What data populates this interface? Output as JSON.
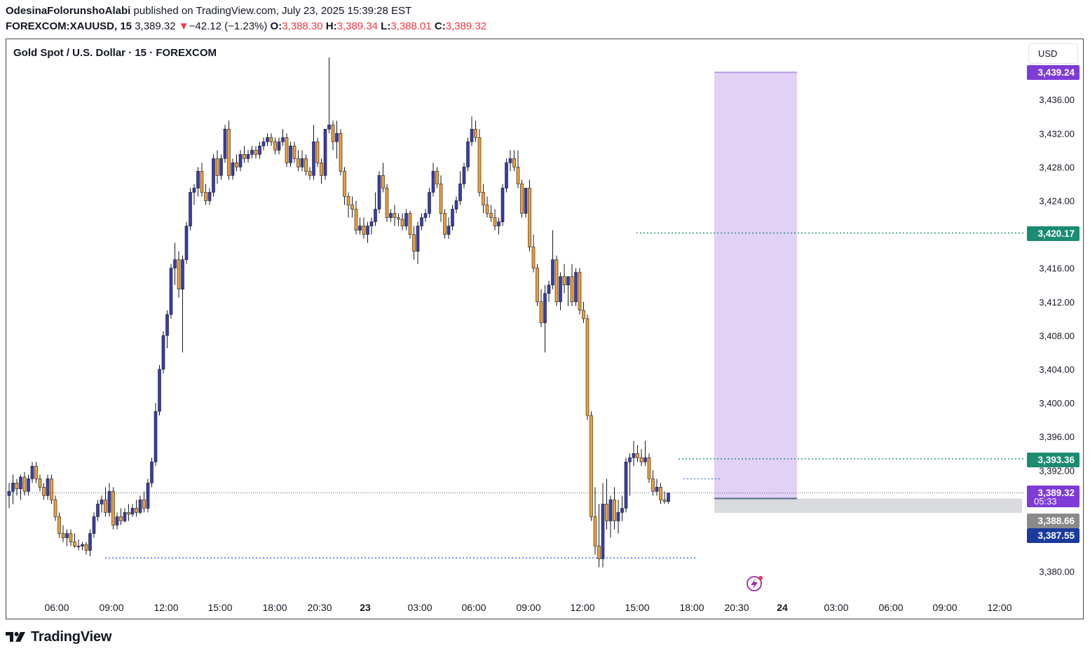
{
  "header": {
    "author": "OdesinaFolorunshoAlabi",
    "published_text": "published on TradingView.com, July 23, 2025 15:39:28 EST",
    "symbol": "FOREXCOM:XAUUSD, 15",
    "last_price": "3,389.32",
    "change_arrow": "▼",
    "change": "−42.12 (−1.23%)",
    "o_label": "O:",
    "o_value": "3,388.30",
    "h_label": "H:",
    "h_value": "3,389.34",
    "l_label": "L:",
    "l_value": "3,388.01",
    "c_label": "C:",
    "c_value": "3,389.32"
  },
  "chart_title": "Gold Spot / U.S. Dollar · 15 · FOREXCOM",
  "currency_button": "USD",
  "footer": {
    "brand": "TradingView",
    "logo_icon": "tradingview-logo-icon"
  },
  "replay_icon": "lightning-icon",
  "colors": {
    "up": "#3a3dac",
    "down": "#f0a030",
    "wick": "#131722",
    "target_zone": "#e1d1f5",
    "purple_label": "#7e3bd8",
    "green_label": "#1b8b72",
    "dark_blue": "#1a3a9c",
    "gray_label": "#8a8a8a",
    "stop_zone": "#d9dbde"
  },
  "chart_data": {
    "type": "candlestick",
    "title": "Gold Spot / U.S. Dollar · 15 · FOREXCOM",
    "y_axis_ticks": [
      "3,436.00",
      "3,432.00",
      "3,428.00",
      "3,424.00",
      "3,416.00",
      "3,412.00",
      "3,408.00",
      "3,404.00",
      "3,400.00",
      "3,396.00",
      "3,392.00",
      "3,380.00"
    ],
    "ylim": [
      3377.5,
      3442.0
    ],
    "x_axis_ticks": [
      "06:00",
      "09:00",
      "12:00",
      "15:00",
      "18:00",
      "20:30",
      "23",
      "03:00",
      "06:00",
      "09:00",
      "12:00",
      "15:00",
      "18:00",
      "20:30",
      "24",
      "03:00",
      "06:00",
      "09:00",
      "12:00"
    ],
    "price_labels": [
      {
        "text": "3,439.24",
        "color": "purple"
      },
      {
        "text": "3,420.17",
        "color": "green"
      },
      {
        "text": "3,393.36",
        "color": "green"
      },
      {
        "text": "3,389.32",
        "sub": "05:33",
        "color": "purple"
      },
      {
        "text": "3,388.66",
        "color": "gray"
      },
      {
        "text": "3,387.55",
        "color": "dark_blue"
      }
    ],
    "levels": [
      {
        "price": 3420.17,
        "style": "dotted-green"
      },
      {
        "price": 3393.36,
        "style": "dotted-green"
      },
      {
        "price": 3381.6,
        "style": "dotted-blue"
      },
      {
        "price": 3389.32,
        "style": "dotted-last"
      }
    ],
    "position": {
      "entry": 3388.66,
      "target": 3439.24,
      "stop": 3387.55
    },
    "candles": [
      [
        3389.0,
        3390.5,
        3387.5,
        3389.5
      ],
      [
        3389.5,
        3391.5,
        3388.0,
        3390.5
      ],
      [
        3390.5,
        3391.0,
        3389.0,
        3389.8
      ],
      [
        3389.8,
        3391.5,
        3388.5,
        3391.2
      ],
      [
        3391.2,
        3391.8,
        3389.0,
        3389.5
      ],
      [
        3389.5,
        3391.5,
        3389.0,
        3391.0
      ],
      [
        3391.0,
        3393.0,
        3390.5,
        3392.5
      ],
      [
        3392.5,
        3393.0,
        3390.5,
        3391.0
      ],
      [
        3391.0,
        3391.5,
        3389.5,
        3390.0
      ],
      [
        3390.0,
        3390.5,
        3388.5,
        3389.0
      ],
      [
        3389.0,
        3391.5,
        3388.5,
        3391.0
      ],
      [
        3391.0,
        3391.5,
        3388.0,
        3388.5
      ],
      [
        3388.5,
        3389.0,
        3386.0,
        3386.5
      ],
      [
        3386.5,
        3387.0,
        3384.0,
        3384.5
      ],
      [
        3384.5,
        3385.5,
        3383.5,
        3384.0
      ],
      [
        3384.0,
        3385.0,
        3383.0,
        3384.5
      ],
      [
        3384.5,
        3385.0,
        3383.0,
        3383.5
      ],
      [
        3383.5,
        3384.5,
        3382.8,
        3383.0
      ],
      [
        3383.0,
        3383.8,
        3382.5,
        3383.0
      ],
      [
        3383.0,
        3383.5,
        3382.5,
        3383.2
      ],
      [
        3383.2,
        3383.5,
        3382.0,
        3382.5
      ],
      [
        3382.5,
        3385.0,
        3381.8,
        3384.5
      ],
      [
        3384.5,
        3387.0,
        3384.0,
        3386.5
      ],
      [
        3386.5,
        3388.5,
        3386.0,
        3388.0
      ],
      [
        3388.0,
        3389.0,
        3387.0,
        3388.5
      ],
      [
        3388.5,
        3390.0,
        3386.5,
        3387.0
      ],
      [
        3387.0,
        3390.5,
        3386.5,
        3389.5
      ],
      [
        3389.5,
        3390.0,
        3385.0,
        3385.5
      ],
      [
        3385.5,
        3387.0,
        3385.0,
        3386.5
      ],
      [
        3386.5,
        3387.5,
        3385.5,
        3386.0
      ],
      [
        3386.0,
        3387.5,
        3385.8,
        3387.0
      ],
      [
        3387.0,
        3388.0,
        3386.0,
        3386.8
      ],
      [
        3386.8,
        3388.0,
        3386.5,
        3387.5
      ],
      [
        3387.5,
        3388.5,
        3386.5,
        3387.0
      ],
      [
        3387.0,
        3389.0,
        3386.8,
        3388.5
      ],
      [
        3388.5,
        3389.5,
        3387.0,
        3387.5
      ],
      [
        3387.5,
        3391.0,
        3387.0,
        3390.5
      ],
      [
        3390.5,
        3393.5,
        3390.0,
        3393.0
      ],
      [
        3393.0,
        3400.0,
        3392.5,
        3399.0
      ],
      [
        3399.0,
        3404.5,
        3398.5,
        3404.0
      ],
      [
        3404.0,
        3408.5,
        3403.5,
        3408.0
      ],
      [
        3408.0,
        3411.0,
        3406.5,
        3410.5
      ],
      [
        3410.5,
        3416.5,
        3410.0,
        3416.0
      ],
      [
        3416.0,
        3419.0,
        3414.0,
        3417.0
      ],
      [
        3417.0,
        3418.0,
        3412.5,
        3413.5
      ],
      [
        3413.5,
        3417.5,
        3406.0,
        3417.0
      ],
      [
        3417.0,
        3421.5,
        3416.5,
        3421.0
      ],
      [
        3421.0,
        3425.5,
        3420.5,
        3425.0
      ],
      [
        3425.0,
        3426.0,
        3423.5,
        3425.5
      ],
      [
        3425.5,
        3428.0,
        3424.5,
        3427.5
      ],
      [
        3427.5,
        3428.5,
        3424.5,
        3425.0
      ],
      [
        3425.0,
        3426.0,
        3423.5,
        3424.0
      ],
      [
        3424.0,
        3425.5,
        3423.5,
        3425.0
      ],
      [
        3425.0,
        3429.5,
        3424.5,
        3429.0
      ],
      [
        3429.0,
        3430.0,
        3426.0,
        3427.0
      ],
      [
        3427.0,
        3429.5,
        3426.5,
        3429.0
      ],
      [
        3429.0,
        3433.0,
        3428.5,
        3432.5
      ],
      [
        3432.5,
        3433.5,
        3426.5,
        3427.0
      ],
      [
        3427.0,
        3429.0,
        3426.5,
        3428.5
      ],
      [
        3428.5,
        3429.5,
        3427.5,
        3428.0
      ],
      [
        3428.0,
        3430.0,
        3427.5,
        3429.5
      ],
      [
        3429.5,
        3430.5,
        3428.5,
        3429.0
      ],
      [
        3429.0,
        3430.0,
        3428.5,
        3429.5
      ],
      [
        3429.5,
        3430.5,
        3429.0,
        3430.0
      ],
      [
        3430.0,
        3430.5,
        3429.0,
        3429.5
      ],
      [
        3429.5,
        3431.0,
        3429.0,
        3430.5
      ],
      [
        3430.5,
        3431.5,
        3430.0,
        3431.0
      ],
      [
        3431.0,
        3432.0,
        3430.5,
        3431.5
      ],
      [
        3431.5,
        3432.0,
        3430.5,
        3431.0
      ],
      [
        3431.0,
        3431.5,
        3429.5,
        3430.0
      ],
      [
        3430.0,
        3431.5,
        3429.5,
        3431.0
      ],
      [
        3431.0,
        3432.5,
        3430.5,
        3431.5
      ],
      [
        3431.5,
        3432.0,
        3428.0,
        3428.5
      ],
      [
        3428.5,
        3431.0,
        3428.0,
        3430.5
      ],
      [
        3430.5,
        3431.0,
        3428.5,
        3429.0
      ],
      [
        3429.0,
        3430.0,
        3427.5,
        3428.0
      ],
      [
        3428.0,
        3430.0,
        3427.5,
        3429.0
      ],
      [
        3429.0,
        3429.5,
        3427.0,
        3427.5
      ],
      [
        3427.5,
        3428.0,
        3426.5,
        3427.0
      ],
      [
        3427.0,
        3433.0,
        3426.5,
        3431.0
      ],
      [
        3431.0,
        3431.5,
        3428.0,
        3428.5
      ],
      [
        3428.5,
        3429.0,
        3426.0,
        3427.0
      ],
      [
        3427.0,
        3432.5,
        3426.5,
        3432.5
      ],
      [
        3432.5,
        3441.0,
        3432.0,
        3433.0
      ],
      [
        3433.0,
        3433.5,
        3430.0,
        3431.0
      ],
      [
        3431.0,
        3433.5,
        3429.0,
        3432.0
      ],
      [
        3432.0,
        3432.5,
        3427.0,
        3427.5
      ],
      [
        3427.5,
        3428.0,
        3423.5,
        3424.5
      ],
      [
        3424.5,
        3425.0,
        3422.0,
        3423.5
      ],
      [
        3423.5,
        3424.5,
        3422.0,
        3423.0
      ],
      [
        3423.0,
        3424.0,
        3420.0,
        3420.5
      ],
      [
        3420.5,
        3422.0,
        3420.0,
        3421.0
      ],
      [
        3421.0,
        3422.0,
        3419.5,
        3420.0
      ],
      [
        3420.0,
        3421.5,
        3419.0,
        3421.0
      ],
      [
        3421.0,
        3422.0,
        3420.0,
        3421.5
      ],
      [
        3421.5,
        3425.0,
        3421.0,
        3423.0
      ],
      [
        3423.0,
        3427.5,
        3422.5,
        3427.0
      ],
      [
        3427.0,
        3428.5,
        3425.0,
        3425.5
      ],
      [
        3425.5,
        3426.0,
        3421.5,
        3422.0
      ],
      [
        3422.0,
        3423.0,
        3421.5,
        3422.5
      ],
      [
        3422.5,
        3423.5,
        3421.0,
        3422.0
      ],
      [
        3422.0,
        3422.5,
        3421.0,
        3421.8
      ],
      [
        3421.8,
        3422.5,
        3420.5,
        3421.0
      ],
      [
        3421.0,
        3423.0,
        3420.5,
        3422.5
      ],
      [
        3422.5,
        3422.8,
        3419.5,
        3420.0
      ],
      [
        3420.0,
        3421.0,
        3417.0,
        3418.0
      ],
      [
        3418.0,
        3421.5,
        3416.5,
        3421.0
      ],
      [
        3421.0,
        3422.5,
        3420.5,
        3422.0
      ],
      [
        3422.0,
        3423.0,
        3421.5,
        3422.5
      ],
      [
        3422.5,
        3425.5,
        3422.0,
        3425.0
      ],
      [
        3425.0,
        3428.5,
        3424.5,
        3427.5
      ],
      [
        3427.5,
        3428.0,
        3425.5,
        3426.0
      ],
      [
        3426.0,
        3427.0,
        3421.5,
        3422.5
      ],
      [
        3422.5,
        3423.0,
        3419.5,
        3420.0
      ],
      [
        3420.0,
        3422.0,
        3419.5,
        3421.0
      ],
      [
        3421.0,
        3423.5,
        3420.5,
        3423.0
      ],
      [
        3423.0,
        3424.5,
        3422.5,
        3424.0
      ],
      [
        3424.0,
        3427.5,
        3423.5,
        3426.0
      ],
      [
        3426.0,
        3428.5,
        3425.5,
        3428.0
      ],
      [
        3428.0,
        3431.5,
        3427.5,
        3431.0
      ],
      [
        3431.0,
        3434.0,
        3430.5,
        3432.5
      ],
      [
        3432.5,
        3433.5,
        3431.0,
        3431.5
      ],
      [
        3431.5,
        3432.5,
        3424.5,
        3425.0
      ],
      [
        3425.0,
        3426.0,
        3422.5,
        3423.5
      ],
      [
        3423.5,
        3424.5,
        3422.0,
        3422.5
      ],
      [
        3422.5,
        3423.5,
        3421.5,
        3422.0
      ],
      [
        3422.0,
        3423.0,
        3420.5,
        3421.0
      ],
      [
        3421.0,
        3422.0,
        3420.0,
        3421.5
      ],
      [
        3421.5,
        3426.0,
        3421.0,
        3425.5
      ],
      [
        3425.5,
        3429.0,
        3425.0,
        3428.5
      ],
      [
        3428.5,
        3430.0,
        3427.5,
        3429.0
      ],
      [
        3429.0,
        3430.0,
        3427.5,
        3428.0
      ],
      [
        3428.0,
        3430.0,
        3425.5,
        3426.0
      ],
      [
        3426.0,
        3426.5,
        3422.0,
        3422.5
      ],
      [
        3422.5,
        3425.5,
        3422.0,
        3425.5
      ],
      [
        3425.5,
        3426.5,
        3418.0,
        3418.5
      ],
      [
        3418.5,
        3420.0,
        3415.5,
        3416.0
      ],
      [
        3416.0,
        3416.5,
        3411.5,
        3412.0
      ],
      [
        3412.0,
        3413.5,
        3409.0,
        3409.5
      ],
      [
        3409.5,
        3414.0,
        3406.0,
        3413.0
      ],
      [
        3413.0,
        3414.5,
        3412.0,
        3414.0
      ],
      [
        3414.0,
        3420.5,
        3413.5,
        3417.0
      ],
      [
        3417.0,
        3417.5,
        3411.5,
        3412.0
      ],
      [
        3412.0,
        3415.5,
        3411.0,
        3415.0
      ],
      [
        3415.0,
        3416.5,
        3413.0,
        3414.0
      ],
      [
        3414.0,
        3415.0,
        3411.5,
        3415.0
      ],
      [
        3415.0,
        3416.5,
        3411.5,
        3412.0
      ],
      [
        3412.0,
        3416.0,
        3411.5,
        3415.5
      ],
      [
        3415.5,
        3416.0,
        3410.5,
        3411.0
      ],
      [
        3411.0,
        3412.0,
        3409.5,
        3410.0
      ],
      [
        3410.0,
        3410.5,
        3398.0,
        3398.5
      ],
      [
        3398.5,
        3399.0,
        3386.0,
        3386.5
      ],
      [
        3386.5,
        3390.0,
        3382.0,
        3383.0
      ],
      [
        3383.0,
        3388.0,
        3380.5,
        3381.5
      ],
      [
        3381.5,
        3390.5,
        3380.5,
        3388.0
      ],
      [
        3388.0,
        3391.0,
        3385.0,
        3386.0
      ],
      [
        3386.0,
        3389.0,
        3384.0,
        3388.5
      ],
      [
        3388.5,
        3390.0,
        3385.0,
        3386.0
      ],
      [
        3386.0,
        3388.5,
        3384.5,
        3387.0
      ],
      [
        3387.0,
        3389.0,
        3386.0,
        3387.5
      ],
      [
        3387.5,
        3393.5,
        3387.0,
        3393.0
      ],
      [
        3393.0,
        3394.0,
        3389.0,
        3393.5
      ],
      [
        3393.5,
        3395.5,
        3392.5,
        3394.0
      ],
      [
        3394.0,
        3395.0,
        3393.0,
        3393.5
      ],
      [
        3393.5,
        3394.5,
        3392.5,
        3393.0
      ],
      [
        3393.0,
        3395.5,
        3392.5,
        3393.5
      ],
      [
        3393.5,
        3394.0,
        3390.5,
        3391.0
      ],
      [
        3391.0,
        3392.0,
        3389.0,
        3389.5
      ],
      [
        3389.5,
        3391.0,
        3389.0,
        3390.0
      ],
      [
        3390.0,
        3390.5,
        3388.0,
        3388.5
      ],
      [
        3388.5,
        3389.5,
        3388.0,
        3388.3
      ],
      [
        3388.3,
        3389.34,
        3388.01,
        3389.32
      ]
    ]
  }
}
